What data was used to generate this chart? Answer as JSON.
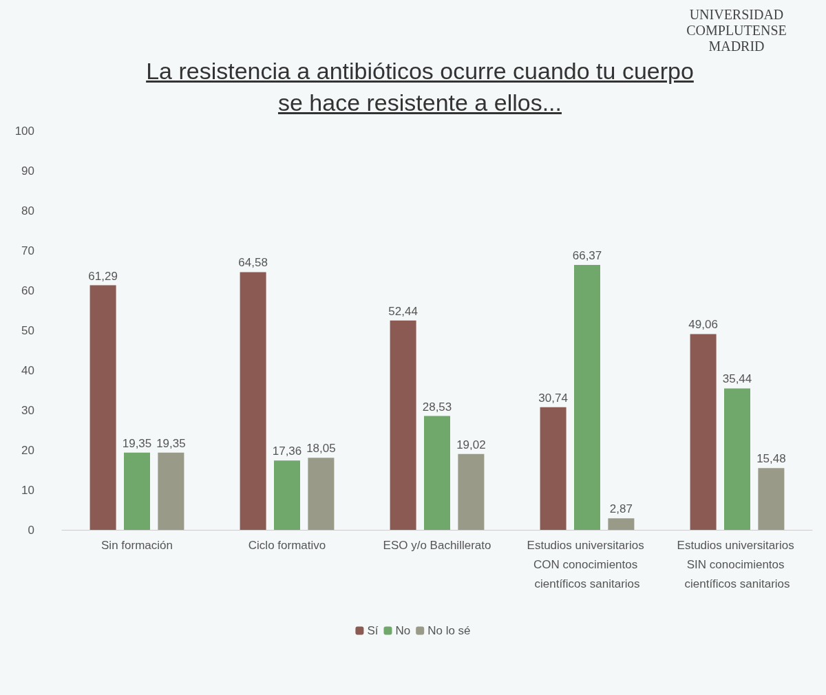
{
  "chart_data": {
    "type": "bar",
    "title": "La resistencia a antibióticos ocurre cuando tu cuerpo se hace resistente a ellos...",
    "categories": [
      "Sin formación",
      "Ciclo formativo",
      "ESO y/o Bachillerato",
      "Estudios universitarios CON conocimientos científicos sanitarios",
      "Estudios universitarios SIN conocimientos científicos sanitarios"
    ],
    "series": [
      {
        "name": "Sí",
        "color": "#8b5a52",
        "values": [
          61.29,
          64.58,
          52.44,
          30.74,
          49.06
        ],
        "value_labels": [
          "61,29",
          "64,58",
          "52,44",
          "30,74",
          "49,06"
        ]
      },
      {
        "name": "No",
        "color": "#6fa86a",
        "values": [
          19.35,
          17.36,
          28.53,
          66.37,
          35.44
        ],
        "value_labels": [
          "19,35",
          "17,36",
          "28,53",
          "66,37",
          "35,44"
        ]
      },
      {
        "name": "No lo sé",
        "color": "#9a9a88",
        "values": [
          19.35,
          18.05,
          19.02,
          2.87,
          15.48
        ],
        "value_labels": [
          "19,35",
          "18,05",
          "19,02",
          "2,87",
          "15,48"
        ]
      }
    ],
    "ylim": [
      0,
      100
    ],
    "yticks": [
      0,
      10,
      20,
      30,
      40,
      50,
      60,
      70,
      80,
      90,
      100
    ],
    "grid": false,
    "legend": "bottom",
    "annotations": [
      "UNIVERSIDAD COMPLUTENSE MADRID"
    ]
  }
}
